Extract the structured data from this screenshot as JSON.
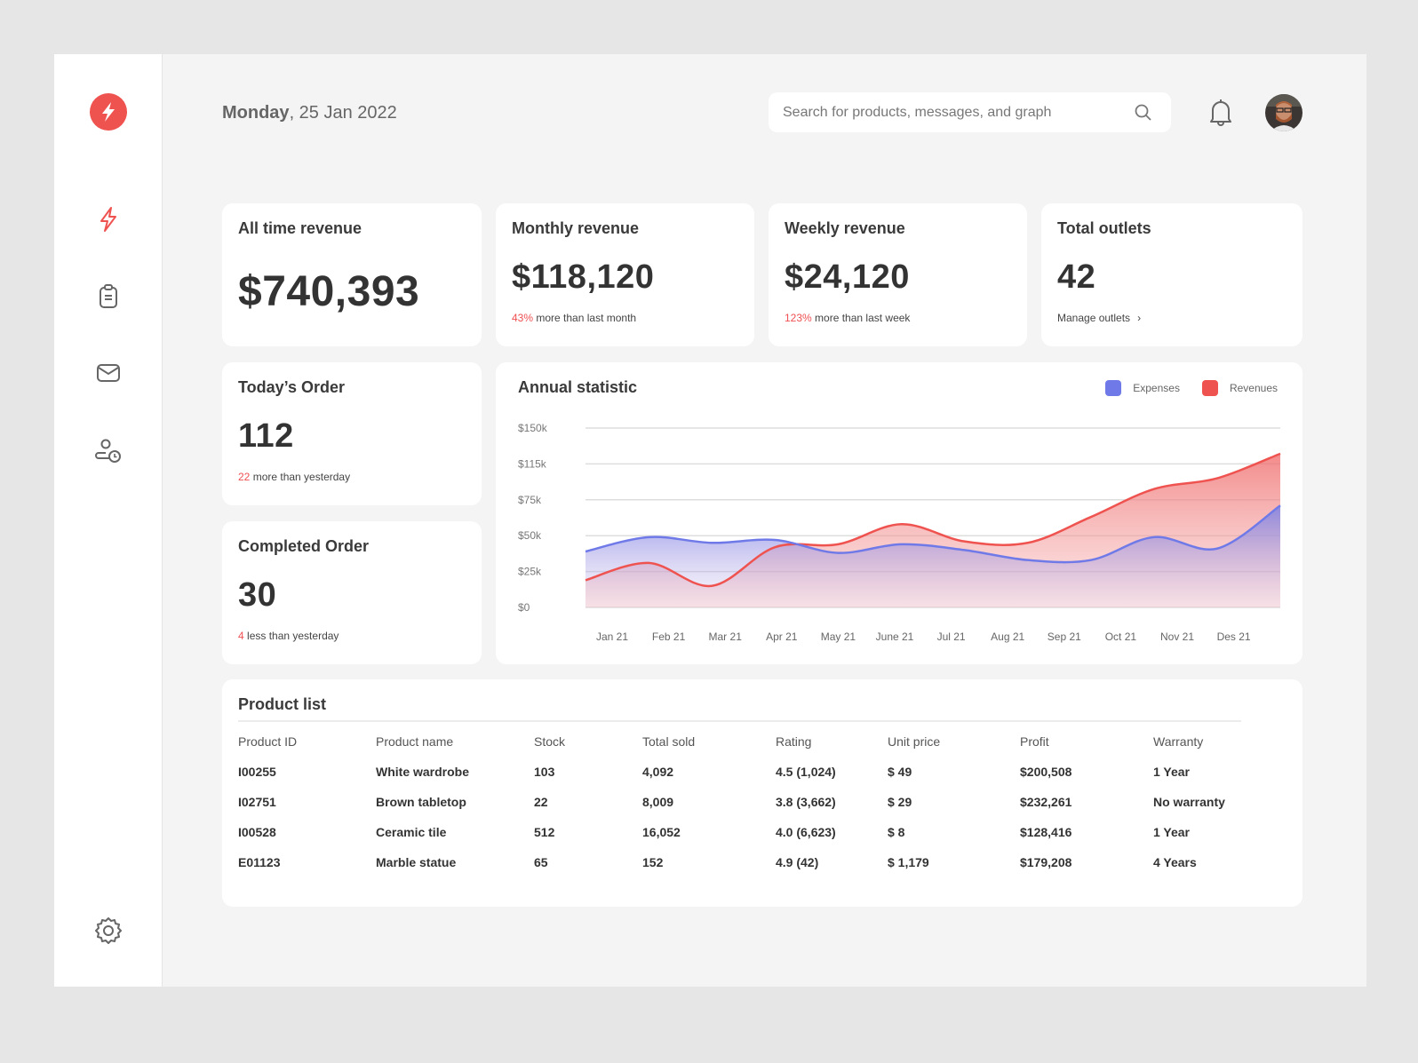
{
  "header": {
    "date_day": "Monday",
    "date_rest": ", 25 Jan 2022",
    "search_placeholder": "Search for products, messages, and graph"
  },
  "sidebar": {
    "items": [
      {
        "icon": "bolt-icon",
        "active": true
      },
      {
        "icon": "clipboard-icon"
      },
      {
        "icon": "mail-icon"
      },
      {
        "icon": "user-clock-icon"
      }
    ],
    "bottom": "gear-icon"
  },
  "stats": [
    {
      "title": "All time revenue",
      "value": "$740,393"
    },
    {
      "title": "Monthly revenue",
      "value": "$118,120",
      "delta": "43%",
      "delta_text": " more than last month"
    },
    {
      "title": "Weekly revenue",
      "value": "$24,120",
      "delta": "123%",
      "delta_text": " more than last week"
    },
    {
      "title": "Total outlets",
      "value": "42",
      "link": "Manage outlets"
    }
  ],
  "orders": [
    {
      "title": "Today’s Order",
      "value": "112",
      "delta": "22",
      "delta_text": " more than yesterday"
    },
    {
      "title": "Completed Order",
      "value": "30",
      "delta": "4",
      "delta_text": " less than yesterday"
    }
  ],
  "colors": {
    "accent": "#ef5350",
    "expenses": "#6f7ae8",
    "revenues": "#ef5350"
  },
  "chart_data": {
    "type": "area",
    "title": "Annual statistic",
    "categories": [
      "Jan 21",
      "Feb 21",
      "Mar 21",
      "Apr 21",
      "May 21",
      "June 21",
      "Jul 21",
      "Aug 21",
      "Sep 21",
      "Oct 21",
      "Nov 21",
      "Des 21"
    ],
    "y_ticks": [
      "$0",
      "$25k",
      "$50k",
      "$75k",
      "$115k",
      "$150k"
    ],
    "y_tick_values": [
      0,
      25,
      50,
      75,
      115,
      150
    ],
    "grid": true,
    "legend": "top-right",
    "series": [
      {
        "name": "Expenses",
        "color": "#6f7ae8",
        "values": [
          39,
          49,
          45,
          47,
          38,
          44,
          40,
          33,
          33,
          49,
          41,
          71
        ]
      },
      {
        "name": "Revenues",
        "color": "#ef5350",
        "values": [
          19,
          31,
          15,
          42,
          44,
          58,
          46,
          45,
          63,
          87,
          99,
          125
        ]
      }
    ]
  },
  "products": {
    "title": "Product list",
    "columns": [
      "Product ID",
      "Product name",
      "Stock",
      "Total sold",
      "Rating",
      "Unit price",
      "Profit",
      "Warranty"
    ],
    "rows": [
      [
        "I00255",
        "White wardrobe",
        "103",
        "4,092",
        "4.5 (1,024)",
        "$ 49",
        "$200,508",
        "1 Year"
      ],
      [
        "I02751",
        "Brown tabletop",
        "22",
        "8,009",
        "3.8 (3,662)",
        "$ 29",
        "$232,261",
        "No warranty"
      ],
      [
        "I00528",
        "Ceramic tile",
        "512",
        "16,052",
        "4.0 (6,623)",
        "$ 8",
        "$128,416",
        "1 Year"
      ],
      [
        "E01123",
        "Marble statue",
        "65",
        "152",
        "4.9 (42)",
        "$ 1,179",
        "$179,208",
        "4 Years"
      ]
    ]
  }
}
